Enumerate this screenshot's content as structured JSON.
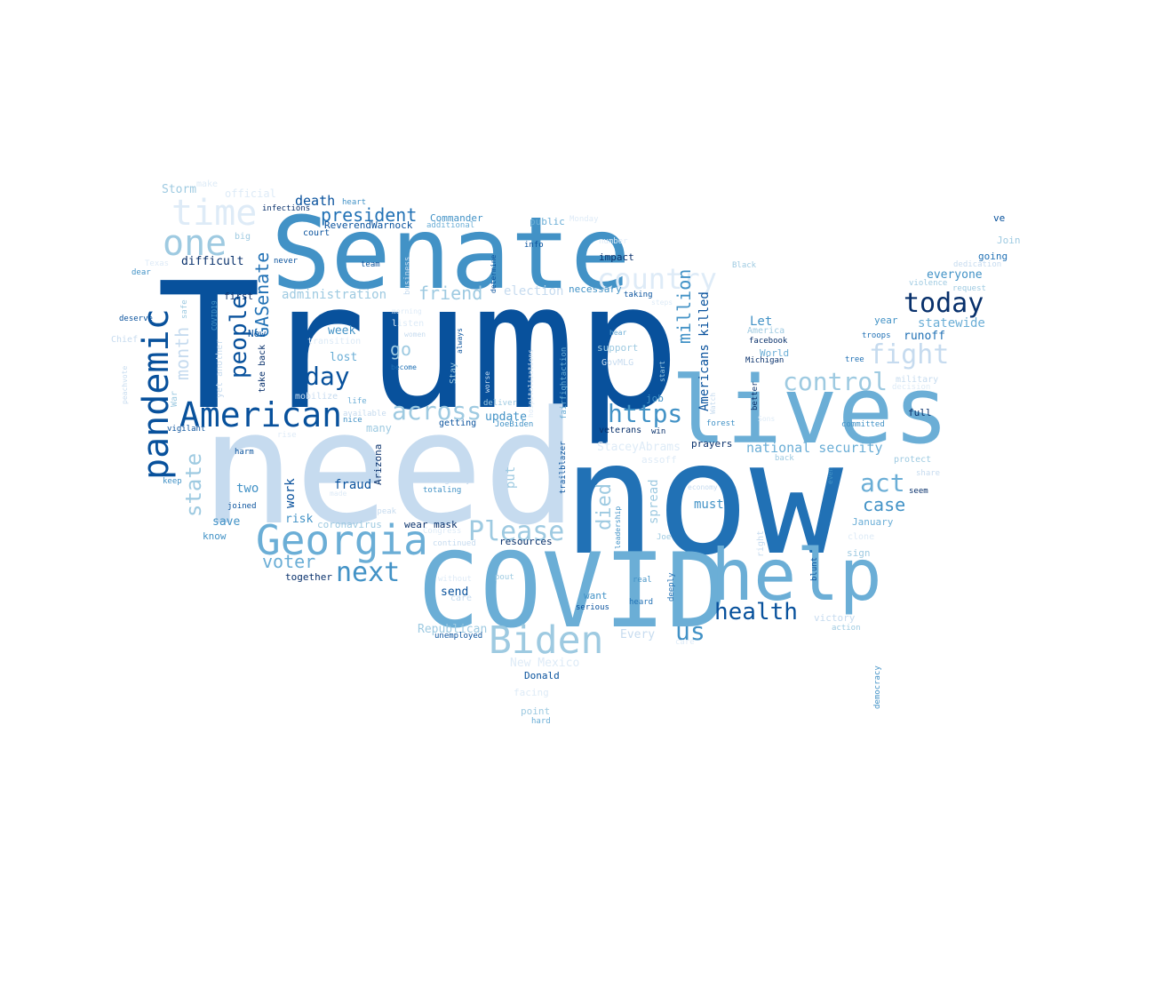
{
  "colors": {
    "c0": "#08306b",
    "c1": "#08519c",
    "c2": "#2171b5",
    "c3": "#4292c6",
    "c4": "#6baed6",
    "c5": "#9ecae1",
    "c6": "#c6dbef",
    "c7": "#deebf7"
  },
  "words": [
    {
      "text": "Trump",
      "color": "c1"
    },
    {
      "text": "need",
      "color": "c6"
    },
    {
      "text": "now",
      "color": "c2"
    },
    {
      "text": "Senate",
      "color": "c3"
    },
    {
      "text": "COVID",
      "color": "c4"
    },
    {
      "text": "lives",
      "color": "c4"
    },
    {
      "text": "help",
      "color": "c4"
    },
    {
      "text": "Georgia",
      "color": "c4"
    },
    {
      "text": "American",
      "color": "c1"
    },
    {
      "text": "Biden",
      "color": "c5"
    },
    {
      "text": "pandemic",
      "color": "c1"
    },
    {
      "text": "time",
      "color": "c7"
    },
    {
      "text": "one",
      "color": "c5"
    },
    {
      "text": "country",
      "color": "c7"
    },
    {
      "text": "Please",
      "color": "c5"
    },
    {
      "text": "next",
      "color": "c3"
    },
    {
      "text": "today",
      "color": "c0"
    },
    {
      "text": "fight",
      "color": "c6"
    },
    {
      "text": "across",
      "color": "c5"
    },
    {
      "text": "control",
      "color": "c5"
    },
    {
      "text": "https",
      "color": "c3"
    },
    {
      "text": "health",
      "color": "c1"
    },
    {
      "text": "act",
      "color": "c4"
    },
    {
      "text": "us",
      "color": "c3"
    },
    {
      "text": "day",
      "color": "c1"
    },
    {
      "text": "people",
      "color": "c1"
    },
    {
      "text": "state",
      "color": "c5"
    },
    {
      "text": "month",
      "color": "c6"
    },
    {
      "text": "GASenate",
      "color": "c2"
    },
    {
      "text": "president",
      "color": "c2"
    },
    {
      "text": "voter",
      "color": "c4"
    },
    {
      "text": "friend",
      "color": "c5"
    },
    {
      "text": "million",
      "color": "c3"
    },
    {
      "text": "died",
      "color": "c5"
    },
    {
      "text": "case",
      "color": "c3"
    },
    {
      "text": "go",
      "color": "c5"
    },
    {
      "text": "national security",
      "color": "c4"
    },
    {
      "text": "statewide",
      "color": "c4"
    },
    {
      "text": "Americans killed",
      "color": "c1"
    },
    {
      "text": "death",
      "color": "c1"
    },
    {
      "text": "election",
      "color": "c6"
    },
    {
      "text": "administration",
      "color": "c5"
    },
    {
      "text": "Storm",
      "color": "c5"
    },
    {
      "text": "difficult",
      "color": "c0"
    },
    {
      "text": "Let",
      "color": "c3"
    },
    {
      "text": "everyone",
      "color": "c3"
    },
    {
      "text": "runoff",
      "color": "c2"
    },
    {
      "text": "week",
      "color": "c3"
    },
    {
      "text": "lost",
      "color": "c4"
    },
    {
      "text": "two",
      "color": "c3"
    },
    {
      "text": "fraud",
      "color": "c1"
    },
    {
      "text": "work",
      "color": "c1"
    },
    {
      "text": "put",
      "color": "c5"
    },
    {
      "text": "spread",
      "color": "c5"
    },
    {
      "text": "must",
      "color": "c3"
    },
    {
      "text": "update",
      "color": "c3"
    },
    {
      "text": "risk",
      "color": "c3"
    },
    {
      "text": "save",
      "color": "c3"
    },
    {
      "text": "Every",
      "color": "c6"
    },
    {
      "text": "Republican",
      "color": "c5"
    },
    {
      "text": "send",
      "color": "c1"
    },
    {
      "text": "StaceyAbrams",
      "color": "c7"
    },
    {
      "text": "World",
      "color": "c4"
    },
    {
      "text": "January",
      "color": "c4"
    },
    {
      "text": "New Mexico",
      "color": "c7"
    },
    {
      "text": "many",
      "color": "c5"
    },
    {
      "text": "year",
      "color": "c3"
    },
    {
      "text": "ReverendWarnock",
      "color": "c1"
    },
    {
      "text": "Commander",
      "color": "c3"
    },
    {
      "text": "impact",
      "color": "c0"
    },
    {
      "text": "necessary",
      "color": "c3"
    },
    {
      "text": "support",
      "color": "c5"
    },
    {
      "text": "Join",
      "color": "c5"
    },
    {
      "text": "going",
      "color": "c2"
    },
    {
      "text": "public",
      "color": "c4"
    },
    {
      "text": "court",
      "color": "c1"
    },
    {
      "text": "wear mask",
      "color": "c0"
    },
    {
      "text": "coronavirus",
      "color": "c5"
    },
    {
      "text": "prayers",
      "color": "c0"
    },
    {
      "text": "veterans",
      "color": "c0"
    },
    {
      "text": "together",
      "color": "c0"
    },
    {
      "text": "Donald",
      "color": "c1"
    },
    {
      "text": "resources",
      "color": "c0"
    },
    {
      "text": "Arizona",
      "color": "c0"
    },
    {
      "text": "first",
      "color": "c0"
    },
    {
      "text": "New",
      "color": "c1"
    },
    {
      "text": "getting",
      "color": "c1"
    },
    {
      "text": "job",
      "color": "c3"
    },
    {
      "text": "full",
      "color": "c0"
    },
    {
      "text": "ve",
      "color": "c1"
    },
    {
      "text": "want",
      "color": "c3"
    },
    {
      "text": "know",
      "color": "c3"
    },
    {
      "text": "point",
      "color": "c5"
    },
    {
      "text": "facing",
      "color": "c7"
    },
    {
      "text": "victory",
      "color": "c6"
    },
    {
      "text": "sign",
      "color": "c5"
    },
    {
      "text": "emergency",
      "color": "c6"
    },
    {
      "text": "GovMLG",
      "color": "c6"
    },
    {
      "text": "Stay",
      "color": "c5"
    },
    {
      "text": "mobilize",
      "color": "c6"
    },
    {
      "text": "transition",
      "color": "c7"
    },
    {
      "text": "listen",
      "color": "c7"
    },
    {
      "text": "official",
      "color": "c7"
    },
    {
      "text": "make",
      "color": "c7"
    },
    {
      "text": "infections",
      "color": "c0"
    },
    {
      "text": "heart",
      "color": "c3"
    },
    {
      "text": "additional",
      "color": "c4"
    },
    {
      "text": "big",
      "color": "c5"
    },
    {
      "text": "never",
      "color": "c1"
    },
    {
      "text": "team",
      "color": "c1"
    },
    {
      "text": "info",
      "color": "c1"
    },
    {
      "text": "Monday",
      "color": "c7"
    },
    {
      "text": "number",
      "color": "c7"
    },
    {
      "text": "business",
      "color": "c6"
    },
    {
      "text": "determine",
      "color": "c1"
    },
    {
      "text": "taking",
      "color": "c1"
    },
    {
      "text": "steps",
      "color": "c7"
    },
    {
      "text": "Black",
      "color": "c5"
    },
    {
      "text": "dedication",
      "color": "c6"
    },
    {
      "text": "violence",
      "color": "c5"
    },
    {
      "text": "request",
      "color": "c5"
    },
    {
      "text": "Texas",
      "color": "c7"
    },
    {
      "text": "dear",
      "color": "c3"
    },
    {
      "text": "deserve",
      "color": "c1"
    },
    {
      "text": "safe",
      "color": "c5"
    },
    {
      "text": "COVID19",
      "color": "c3"
    },
    {
      "text": "Chief",
      "color": "c6"
    },
    {
      "text": "peachvote",
      "color": "c6"
    },
    {
      "text": "War",
      "color": "c5"
    },
    {
      "text": "yet another",
      "color": "c6"
    },
    {
      "text": "take back",
      "color": "c0"
    },
    {
      "text": "morning",
      "color": "c7"
    },
    {
      "text": "women",
      "color": "c6"
    },
    {
      "text": "become",
      "color": "c2"
    },
    {
      "text": "always",
      "color": "c1"
    },
    {
      "text": "worse",
      "color": "c6"
    },
    {
      "text": "hospitalizations",
      "color": "c7"
    },
    {
      "text": "fairfightaction",
      "color": "c4"
    },
    {
      "text": "hear",
      "color": "c4"
    },
    {
      "text": "start",
      "color": "c5"
    },
    {
      "text": "Watch",
      "color": "c6"
    },
    {
      "text": "better",
      "color": "c0"
    },
    {
      "text": "facebook",
      "color": "c0"
    },
    {
      "text": "America",
      "color": "c5"
    },
    {
      "text": "Michigan",
      "color": "c0"
    },
    {
      "text": "troops",
      "color": "c2"
    },
    {
      "text": "tree",
      "color": "c2"
    },
    {
      "text": "military",
      "color": "c6"
    },
    {
      "text": "decision",
      "color": "c7"
    },
    {
      "text": "committed",
      "color": "c3"
    },
    {
      "text": "forest",
      "color": "c3"
    },
    {
      "text": "win",
      "color": "c0"
    },
    {
      "text": "JoeBiden",
      "color": "c3"
    },
    {
      "text": "deliver",
      "color": "c5"
    },
    {
      "text": "life",
      "color": "c4"
    },
    {
      "text": "available",
      "color": "c6"
    },
    {
      "text": "nice",
      "color": "c3"
    },
    {
      "text": "vigilant",
      "color": "c1"
    },
    {
      "text": "rise",
      "color": "c7"
    },
    {
      "text": "harm",
      "color": "c1"
    },
    {
      "text": "keep",
      "color": "c3"
    },
    {
      "text": "joined",
      "color": "c1"
    },
    {
      "text": "made",
      "color": "c7"
    },
    {
      "text": "speak",
      "color": "c6"
    },
    {
      "text": "totaling",
      "color": "c3"
    },
    {
      "text": "Congress",
      "color": "c7"
    },
    {
      "text": "continued",
      "color": "c6"
    },
    {
      "text": "unemployed",
      "color": "c1"
    },
    {
      "text": "without",
      "color": "c7"
    },
    {
      "text": "pout",
      "color": "c5"
    },
    {
      "text": "care",
      "color": "c6"
    },
    {
      "text": "serious",
      "color": "c1"
    },
    {
      "text": "heard",
      "color": "c2"
    },
    {
      "text": "real",
      "color": "c3"
    },
    {
      "text": "deeply",
      "color": "c2"
    },
    {
      "text": "leadership",
      "color": "c3"
    },
    {
      "text": "trailblazer",
      "color": "c1"
    },
    {
      "text": "economy",
      "color": "c6"
    },
    {
      "text": "Joe",
      "color": "c5"
    },
    {
      "text": "right",
      "color": "c6"
    },
    {
      "text": "blunt",
      "color": "c1"
    },
    {
      "text": "even",
      "color": "c3"
    },
    {
      "text": "seem",
      "color": "c0"
    },
    {
      "text": "share",
      "color": "c6"
    },
    {
      "text": "protect",
      "color": "c5"
    },
    {
      "text": "back",
      "color": "c5"
    },
    {
      "text": "action",
      "color": "c5"
    },
    {
      "text": "democracy",
      "color": "c3"
    },
    {
      "text": "hard",
      "color": "c4"
    },
    {
      "text": "Sons",
      "color": "c7"
    },
    {
      "text": "assoff",
      "color": "c7"
    },
    {
      "text": "clone",
      "color": "c7"
    },
    {
      "text": "care",
      "color": "c7"
    }
  ]
}
